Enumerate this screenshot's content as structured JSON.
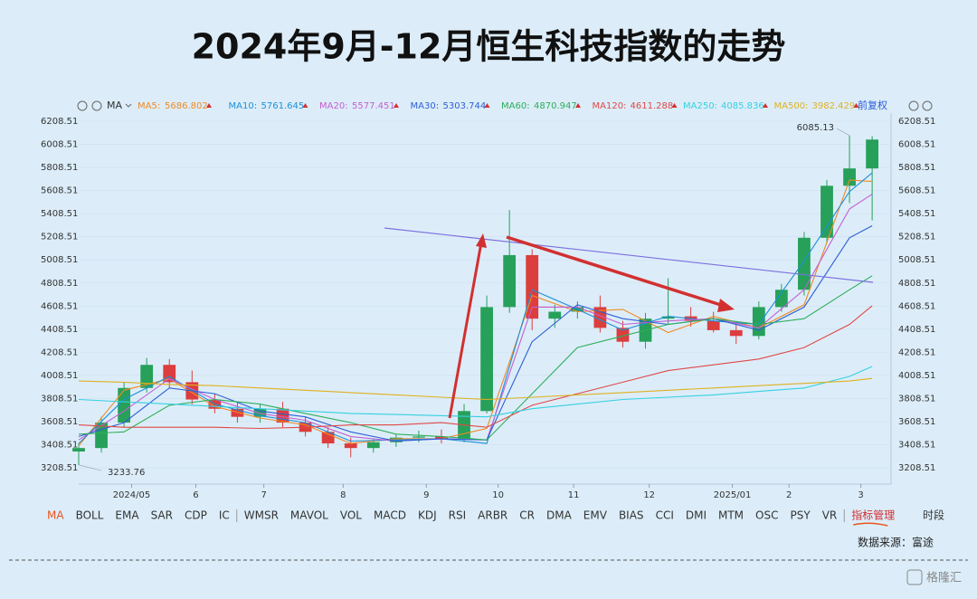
{
  "chart_data": {
    "type": "candlestick",
    "title": "2024年9月-12月恒生科技指数的走势",
    "x": [
      0,
      6,
      12,
      18,
      24,
      30,
      36,
      42,
      48,
      54,
      60,
      66,
      72,
      78,
      84,
      90,
      96,
      102,
      108,
      114,
      120,
      126,
      132,
      138,
      144,
      150,
      156,
      162,
      168,
      174,
      180,
      186,
      192,
      198,
      204,
      210
    ],
    "open": [
      3350,
      3380,
      3600,
      3900,
      4100,
      3950,
      3800,
      3720,
      3650,
      3720,
      3600,
      3520,
      3420,
      3380,
      3430,
      3470,
      3480,
      3460,
      3700,
      4600,
      5050,
      4500,
      4560,
      4600,
      4420,
      4300,
      4500,
      4520,
      4480,
      4400,
      4350,
      4600,
      4750,
      5200,
      5650,
      5800
    ],
    "high": [
      3420,
      3650,
      3950,
      4160,
      4150,
      4050,
      3850,
      3780,
      3760,
      3780,
      3650,
      3560,
      3470,
      3460,
      3500,
      3530,
      3540,
      3760,
      4700,
      5440,
      5100,
      4620,
      4650,
      4700,
      4480,
      4550,
      4850,
      4600,
      4560,
      4460,
      4650,
      4800,
      5250,
      5700,
      6085.13,
      6080
    ],
    "low": [
      3233.76,
      3340,
      3560,
      3860,
      3900,
      3760,
      3680,
      3600,
      3600,
      3560,
      3480,
      3380,
      3300,
      3340,
      3390,
      3430,
      3420,
      3430,
      3680,
      4550,
      4400,
      4420,
      4500,
      4380,
      4250,
      4240,
      4450,
      4430,
      4380,
      4280,
      4320,
      4560,
      4700,
      5150,
      5500,
      5350
    ],
    "close": [
      3380,
      3600,
      3900,
      4100,
      3950,
      3800,
      3720,
      3650,
      3720,
      3600,
      3520,
      3420,
      3380,
      3430,
      3470,
      3480,
      3460,
      3700,
      4600,
      5050,
      4500,
      4560,
      4600,
      4420,
      4300,
      4500,
      4520,
      4480,
      4400,
      4350,
      4600,
      4750,
      5200,
      5650,
      5800,
      6050
    ],
    "up_color": "#27a05a",
    "down_color": "#dc3d3d",
    "series": [
      {
        "name": "MA5:",
        "color": "#f08a24",
        "legend_value": "5686.802",
        "x": [
          0,
          12,
          24,
          36,
          48,
          60,
          72,
          84,
          96,
          108,
          120,
          132,
          144,
          156,
          168,
          180,
          192,
          204,
          210
        ],
        "values": [
          3400,
          3880,
          3980,
          3740,
          3640,
          3580,
          3420,
          3460,
          3460,
          3550,
          4700,
          4560,
          4580,
          4380,
          4520,
          4420,
          4620,
          5700,
          5686.802
        ]
      },
      {
        "name": "MA10:",
        "color": "#1e90d8",
        "legend_value": "5761.645",
        "x": [
          0,
          12,
          24,
          36,
          48,
          60,
          72,
          84,
          96,
          108,
          120,
          132,
          144,
          156,
          168,
          180,
          192,
          204,
          210
        ],
        "values": [
          3420,
          3800,
          4000,
          3760,
          3660,
          3600,
          3440,
          3450,
          3460,
          3420,
          4750,
          4580,
          4400,
          4520,
          4480,
          4450,
          5000,
          5600,
          5761.645
        ]
      },
      {
        "name": "MA20:",
        "color": "#c45fd0",
        "legend_value": "5577.451",
        "x": [
          0,
          12,
          24,
          36,
          48,
          60,
          72,
          84,
          96,
          108,
          120,
          132,
          144,
          156,
          168,
          180,
          192,
          204,
          210
        ],
        "values": [
          3450,
          3700,
          3980,
          3800,
          3680,
          3620,
          3480,
          3440,
          3460,
          3450,
          4600,
          4600,
          4450,
          4480,
          4500,
          4420,
          4750,
          5450,
          5577.451
        ]
      },
      {
        "name": "MA30:",
        "color": "#2e5fd6",
        "legend_value": "5303.744",
        "x": [
          0,
          12,
          24,
          36,
          48,
          60,
          72,
          84,
          96,
          108,
          120,
          132,
          144,
          156,
          168,
          180,
          192,
          204,
          210
        ],
        "values": [
          3480,
          3600,
          3900,
          3850,
          3700,
          3650,
          3520,
          3440,
          3460,
          3450,
          4300,
          4620,
          4500,
          4450,
          4500,
          4400,
          4600,
          5200,
          5303.744
        ]
      },
      {
        "name": "MA60:",
        "color": "#2eae5a",
        "legend_value": "4870.947",
        "x": [
          0,
          12,
          24,
          36,
          48,
          60,
          72,
          84,
          96,
          108,
          120,
          132,
          144,
          156,
          168,
          180,
          192,
          204,
          210
        ],
        "values": [
          3500,
          3520,
          3750,
          3800,
          3760,
          3680,
          3600,
          3500,
          3480,
          3450,
          3850,
          4250,
          4350,
          4450,
          4500,
          4450,
          4500,
          4750,
          4870.947
        ]
      },
      {
        "name": "MA120:",
        "color": "#e04848",
        "legend_value": "4611.288",
        "x": [
          0,
          12,
          24,
          36,
          48,
          60,
          72,
          84,
          96,
          108,
          120,
          132,
          144,
          156,
          168,
          180,
          192,
          204,
          210
        ],
        "values": [
          3580,
          3560,
          3560,
          3560,
          3550,
          3560,
          3580,
          3580,
          3600,
          3560,
          3750,
          3850,
          3950,
          4050,
          4100,
          4150,
          4250,
          4450,
          4611.288
        ]
      },
      {
        "name": "MA250:",
        "color": "#35d0e0",
        "legend_value": "4085.836",
        "x": [
          0,
          12,
          24,
          36,
          48,
          60,
          72,
          84,
          96,
          108,
          120,
          132,
          144,
          156,
          168,
          180,
          192,
          204,
          210
        ],
        "values": [
          3800,
          3780,
          3760,
          3740,
          3720,
          3700,
          3680,
          3670,
          3660,
          3650,
          3720,
          3760,
          3800,
          3820,
          3840,
          3870,
          3900,
          4000,
          4085.836
        ]
      },
      {
        "name": "MA500:",
        "color": "#e0b020",
        "legend_value": "3982.429",
        "x": [
          0,
          12,
          24,
          36,
          48,
          60,
          72,
          84,
          96,
          108,
          120,
          132,
          144,
          156,
          168,
          180,
          192,
          204,
          210
        ],
        "values": [
          3960,
          3950,
          3930,
          3920,
          3900,
          3880,
          3860,
          3840,
          3820,
          3800,
          3820,
          3840,
          3860,
          3880,
          3900,
          3920,
          3940,
          3960,
          3982.429
        ]
      }
    ],
    "xlim": [
      0,
      215
    ],
    "xticks": [
      {
        "value": 14,
        "label": "2024/05"
      },
      {
        "value": 31,
        "label": "6"
      },
      {
        "value": 49,
        "label": "7"
      },
      {
        "value": 70,
        "label": "8"
      },
      {
        "value": 92,
        "label": "9"
      },
      {
        "value": 111,
        "label": "10"
      },
      {
        "value": 131,
        "label": "11"
      },
      {
        "value": 151,
        "label": "12"
      },
      {
        "value": 173,
        "label": "2025/01"
      },
      {
        "value": 188,
        "label": "2"
      },
      {
        "value": 207,
        "label": "3"
      }
    ],
    "ylim": [
      3068,
      6279
    ],
    "yticks": [
      3208.51,
      3408.51,
      3608.51,
      3808.51,
      4008.51,
      4208.51,
      4408.51,
      4608.51,
      4808.51,
      5008.51,
      5208.51,
      5408.51,
      5608.51,
      5808.51,
      6008.51,
      6208.51
    ]
  },
  "toolbar": {
    "indicator": "MA",
    "adjust": "前复权"
  },
  "tabs": [
    "MA",
    "BOLL",
    "EMA",
    "SAR",
    "CDP",
    "IC",
    "WMSR",
    "MAVOL",
    "VOL",
    "MACD",
    "KDJ",
    "RSI",
    "ARBR",
    "CR",
    "DMA",
    "EMV",
    "BIAS",
    "CCI",
    "DMI",
    "MTM",
    "OSC",
    "PSY",
    "VR",
    "指标管理"
  ],
  "period": "时段",
  "source": "数据来源：富途",
  "logo": "格隆汇"
}
